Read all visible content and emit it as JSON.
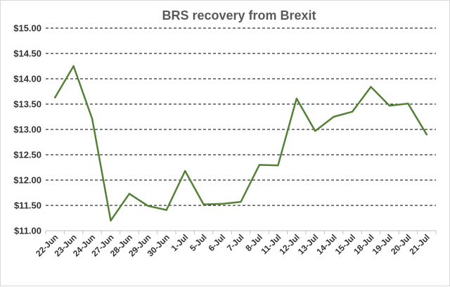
{
  "chart_data": {
    "type": "line",
    "title": "BRS recovery from Brexit",
    "xlabel": "",
    "ylabel": "",
    "ylim": [
      11.0,
      15.0
    ],
    "ytick_step": 0.5,
    "ytick_prefix": "$",
    "grid": true,
    "legend": "none",
    "line_color": "#538135",
    "categories": [
      "22-Jun",
      "23-Jun",
      "24-Jun",
      "27-Jun",
      "28-Jun",
      "29-Jun",
      "30-Jun",
      "1-Jul",
      "5-Jul",
      "6-Jul",
      "7-Jul",
      "8-Jul",
      "11-Jul",
      "12-Jul",
      "13-Jul",
      "14-Jul",
      "15-Jul",
      "18-Jul",
      "19-Jul",
      "20-Jul",
      "21-Jul"
    ],
    "series": [
      {
        "values": [
          13.63,
          14.25,
          13.21,
          11.2,
          11.73,
          11.49,
          11.41,
          12.18,
          11.52,
          11.53,
          11.57,
          12.3,
          12.29,
          13.61,
          12.97,
          13.25,
          13.35,
          13.84,
          13.47,
          13.51,
          12.9
        ]
      }
    ]
  }
}
